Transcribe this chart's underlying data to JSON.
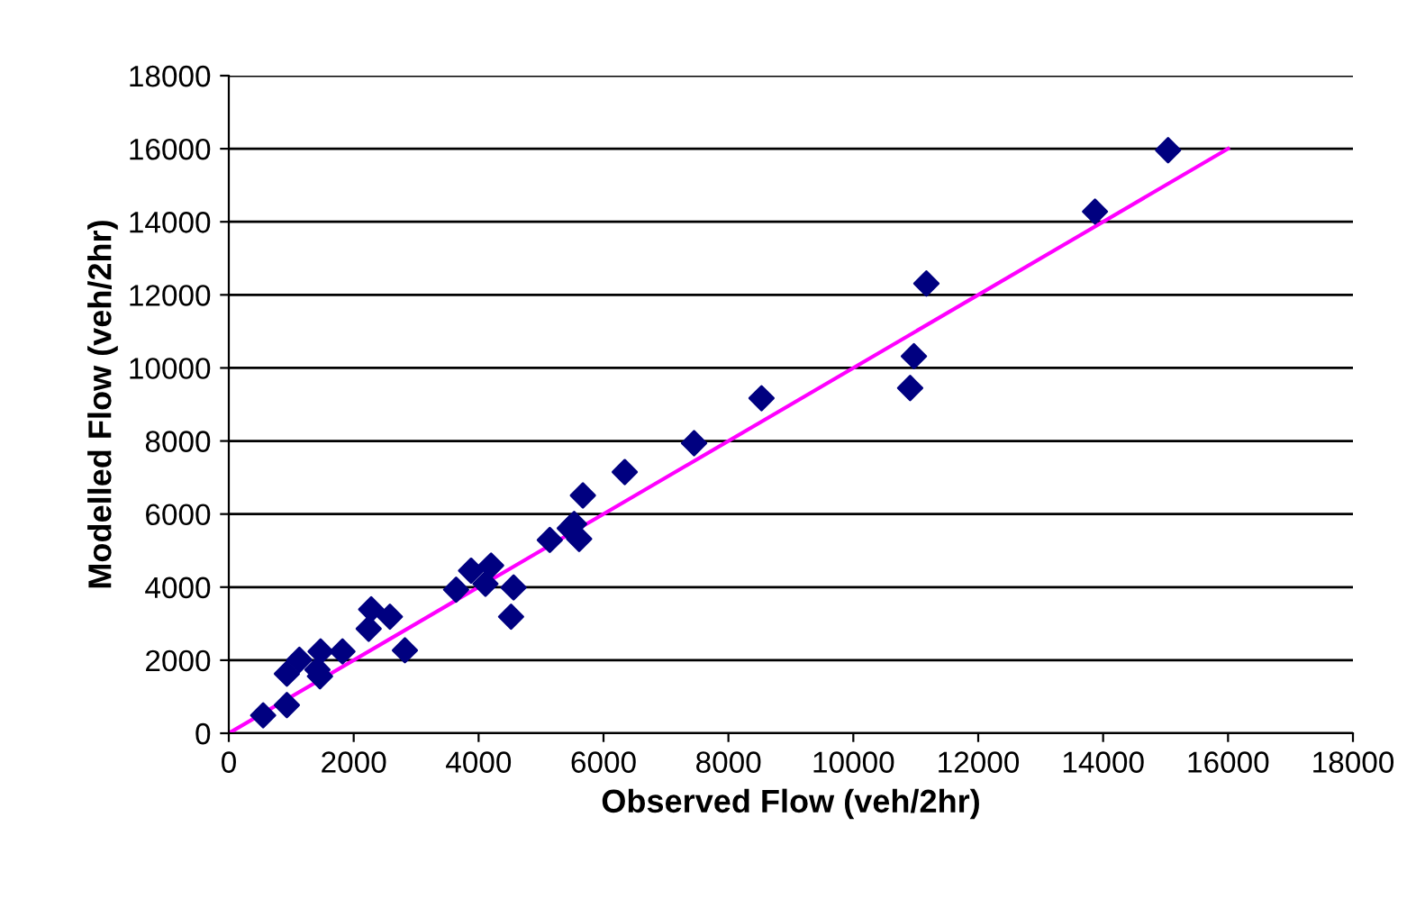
{
  "chart_data": {
    "type": "scatter",
    "xlabel": "Observed Flow (veh/2hr)",
    "ylabel": "Modelled Flow (veh/2hr)",
    "xlim": [
      0,
      18000
    ],
    "ylim": [
      0,
      18000
    ],
    "xticks": [
      0,
      2000,
      4000,
      6000,
      8000,
      10000,
      12000,
      14000,
      16000,
      18000
    ],
    "yticks": [
      0,
      2000,
      4000,
      6000,
      8000,
      10000,
      12000,
      14000,
      16000,
      18000
    ],
    "grid": "y",
    "legend": false,
    "marker": "diamond",
    "series": [
      {
        "color": "#000080",
        "x": [
          550,
          930,
          930,
          1130,
          1470,
          1460,
          1420,
          1820,
          2280,
          2240,
          2580,
          2820,
          3640,
          3880,
          4200,
          4110,
          4560,
          4520,
          5140,
          5460,
          5530,
          5610,
          5670,
          6340,
          7450,
          8530,
          10910,
          10970,
          11170,
          13870,
          15040
        ],
        "values": [
          490,
          770,
          1630,
          2010,
          2240,
          1560,
          1740,
          2240,
          3390,
          2860,
          3190,
          2270,
          3930,
          4450,
          4590,
          4090,
          3990,
          3190,
          5290,
          5610,
          5730,
          5320,
          6510,
          7150,
          7940,
          9170,
          9450,
          10320,
          12310,
          14280,
          15960
        ]
      },
      {
        "type": "line",
        "color": "#ff00ff",
        "marker": "none",
        "line_style": "solid",
        "x": [
          0,
          16000
        ],
        "values": [
          0,
          16000
        ]
      }
    ]
  }
}
